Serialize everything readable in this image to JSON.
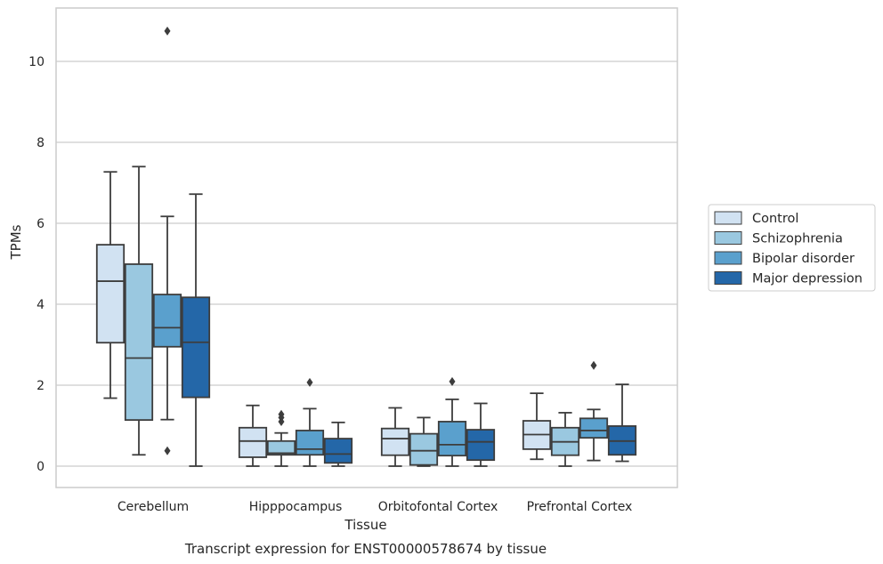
{
  "chart_data": {
    "type": "box",
    "xlabel": "Tissue",
    "ylabel": "TPMs",
    "caption": "Transcript expression for ENST00000578674 by tissue",
    "ylim": [
      -0.5,
      11.3
    ],
    "yticks": [
      "0",
      "2",
      "4",
      "6",
      "8",
      "10"
    ],
    "grid": true,
    "legend_position": "right",
    "categories": [
      "Cerebellum",
      "Hipppocampus",
      "Orbitofontal Cortex",
      "Prefrontal Cortex"
    ],
    "series": [
      {
        "name": "Control",
        "color": "#d1e2f2",
        "boxes": [
          {
            "whislo": 1.68,
            "q1": 3.05,
            "med": 4.57,
            "q3": 5.47,
            "whishi": 7.27,
            "fliers": []
          },
          {
            "whislo": 0.0,
            "q1": 0.22,
            "med": 0.62,
            "q3": 0.95,
            "whishi": 1.5,
            "fliers": []
          },
          {
            "whislo": 0.0,
            "q1": 0.27,
            "med": 0.68,
            "q3": 0.93,
            "whishi": 1.44,
            "fliers": []
          },
          {
            "whislo": 0.17,
            "q1": 0.42,
            "med": 0.78,
            "q3": 1.12,
            "whishi": 1.8,
            "fliers": []
          }
        ]
      },
      {
        "name": "Schizophrenia",
        "color": "#9ac8e0",
        "boxes": [
          {
            "whislo": 0.28,
            "q1": 1.14,
            "med": 2.67,
            "q3": 4.99,
            "whishi": 7.4,
            "fliers": []
          },
          {
            "whislo": 0.0,
            "q1": 0.28,
            "med": 0.32,
            "q3": 0.62,
            "whishi": 0.82,
            "fliers": [
              1.1,
              1.2,
              1.28
            ]
          },
          {
            "whislo": 0.0,
            "q1": 0.03,
            "med": 0.38,
            "q3": 0.8,
            "whishi": 1.2,
            "fliers": []
          },
          {
            "whislo": 0.0,
            "q1": 0.27,
            "med": 0.6,
            "q3": 0.95,
            "whishi": 1.32,
            "fliers": []
          }
        ]
      },
      {
        "name": "Bipolar disorder",
        "color": "#5aa0cd",
        "boxes": [
          {
            "whislo": 1.15,
            "q1": 2.95,
            "med": 3.42,
            "q3": 4.24,
            "whishi": 6.17,
            "fliers": [
              0.38,
              10.75
            ]
          },
          {
            "whislo": 0.0,
            "q1": 0.28,
            "med": 0.42,
            "q3": 0.88,
            "whishi": 1.42,
            "fliers": [
              2.07
            ]
          },
          {
            "whislo": 0.0,
            "q1": 0.26,
            "med": 0.53,
            "q3": 1.1,
            "whishi": 1.65,
            "fliers": [
              2.09
            ]
          },
          {
            "whislo": 0.14,
            "q1": 0.7,
            "med": 0.88,
            "q3": 1.18,
            "whishi": 1.4,
            "fliers": [
              2.49
            ]
          }
        ]
      },
      {
        "name": "Major depression",
        "color": "#2467a8",
        "boxes": [
          {
            "whislo": 0.0,
            "q1": 1.7,
            "med": 3.06,
            "q3": 4.17,
            "whishi": 6.72,
            "fliers": []
          },
          {
            "whislo": 0.0,
            "q1": 0.08,
            "med": 0.3,
            "q3": 0.68,
            "whishi": 1.08,
            "fliers": []
          },
          {
            "whislo": 0.0,
            "q1": 0.15,
            "med": 0.6,
            "q3": 0.9,
            "whishi": 1.55,
            "fliers": []
          },
          {
            "whislo": 0.12,
            "q1": 0.28,
            "med": 0.62,
            "q3": 0.99,
            "whishi": 2.02,
            "fliers": []
          }
        ]
      }
    ]
  }
}
